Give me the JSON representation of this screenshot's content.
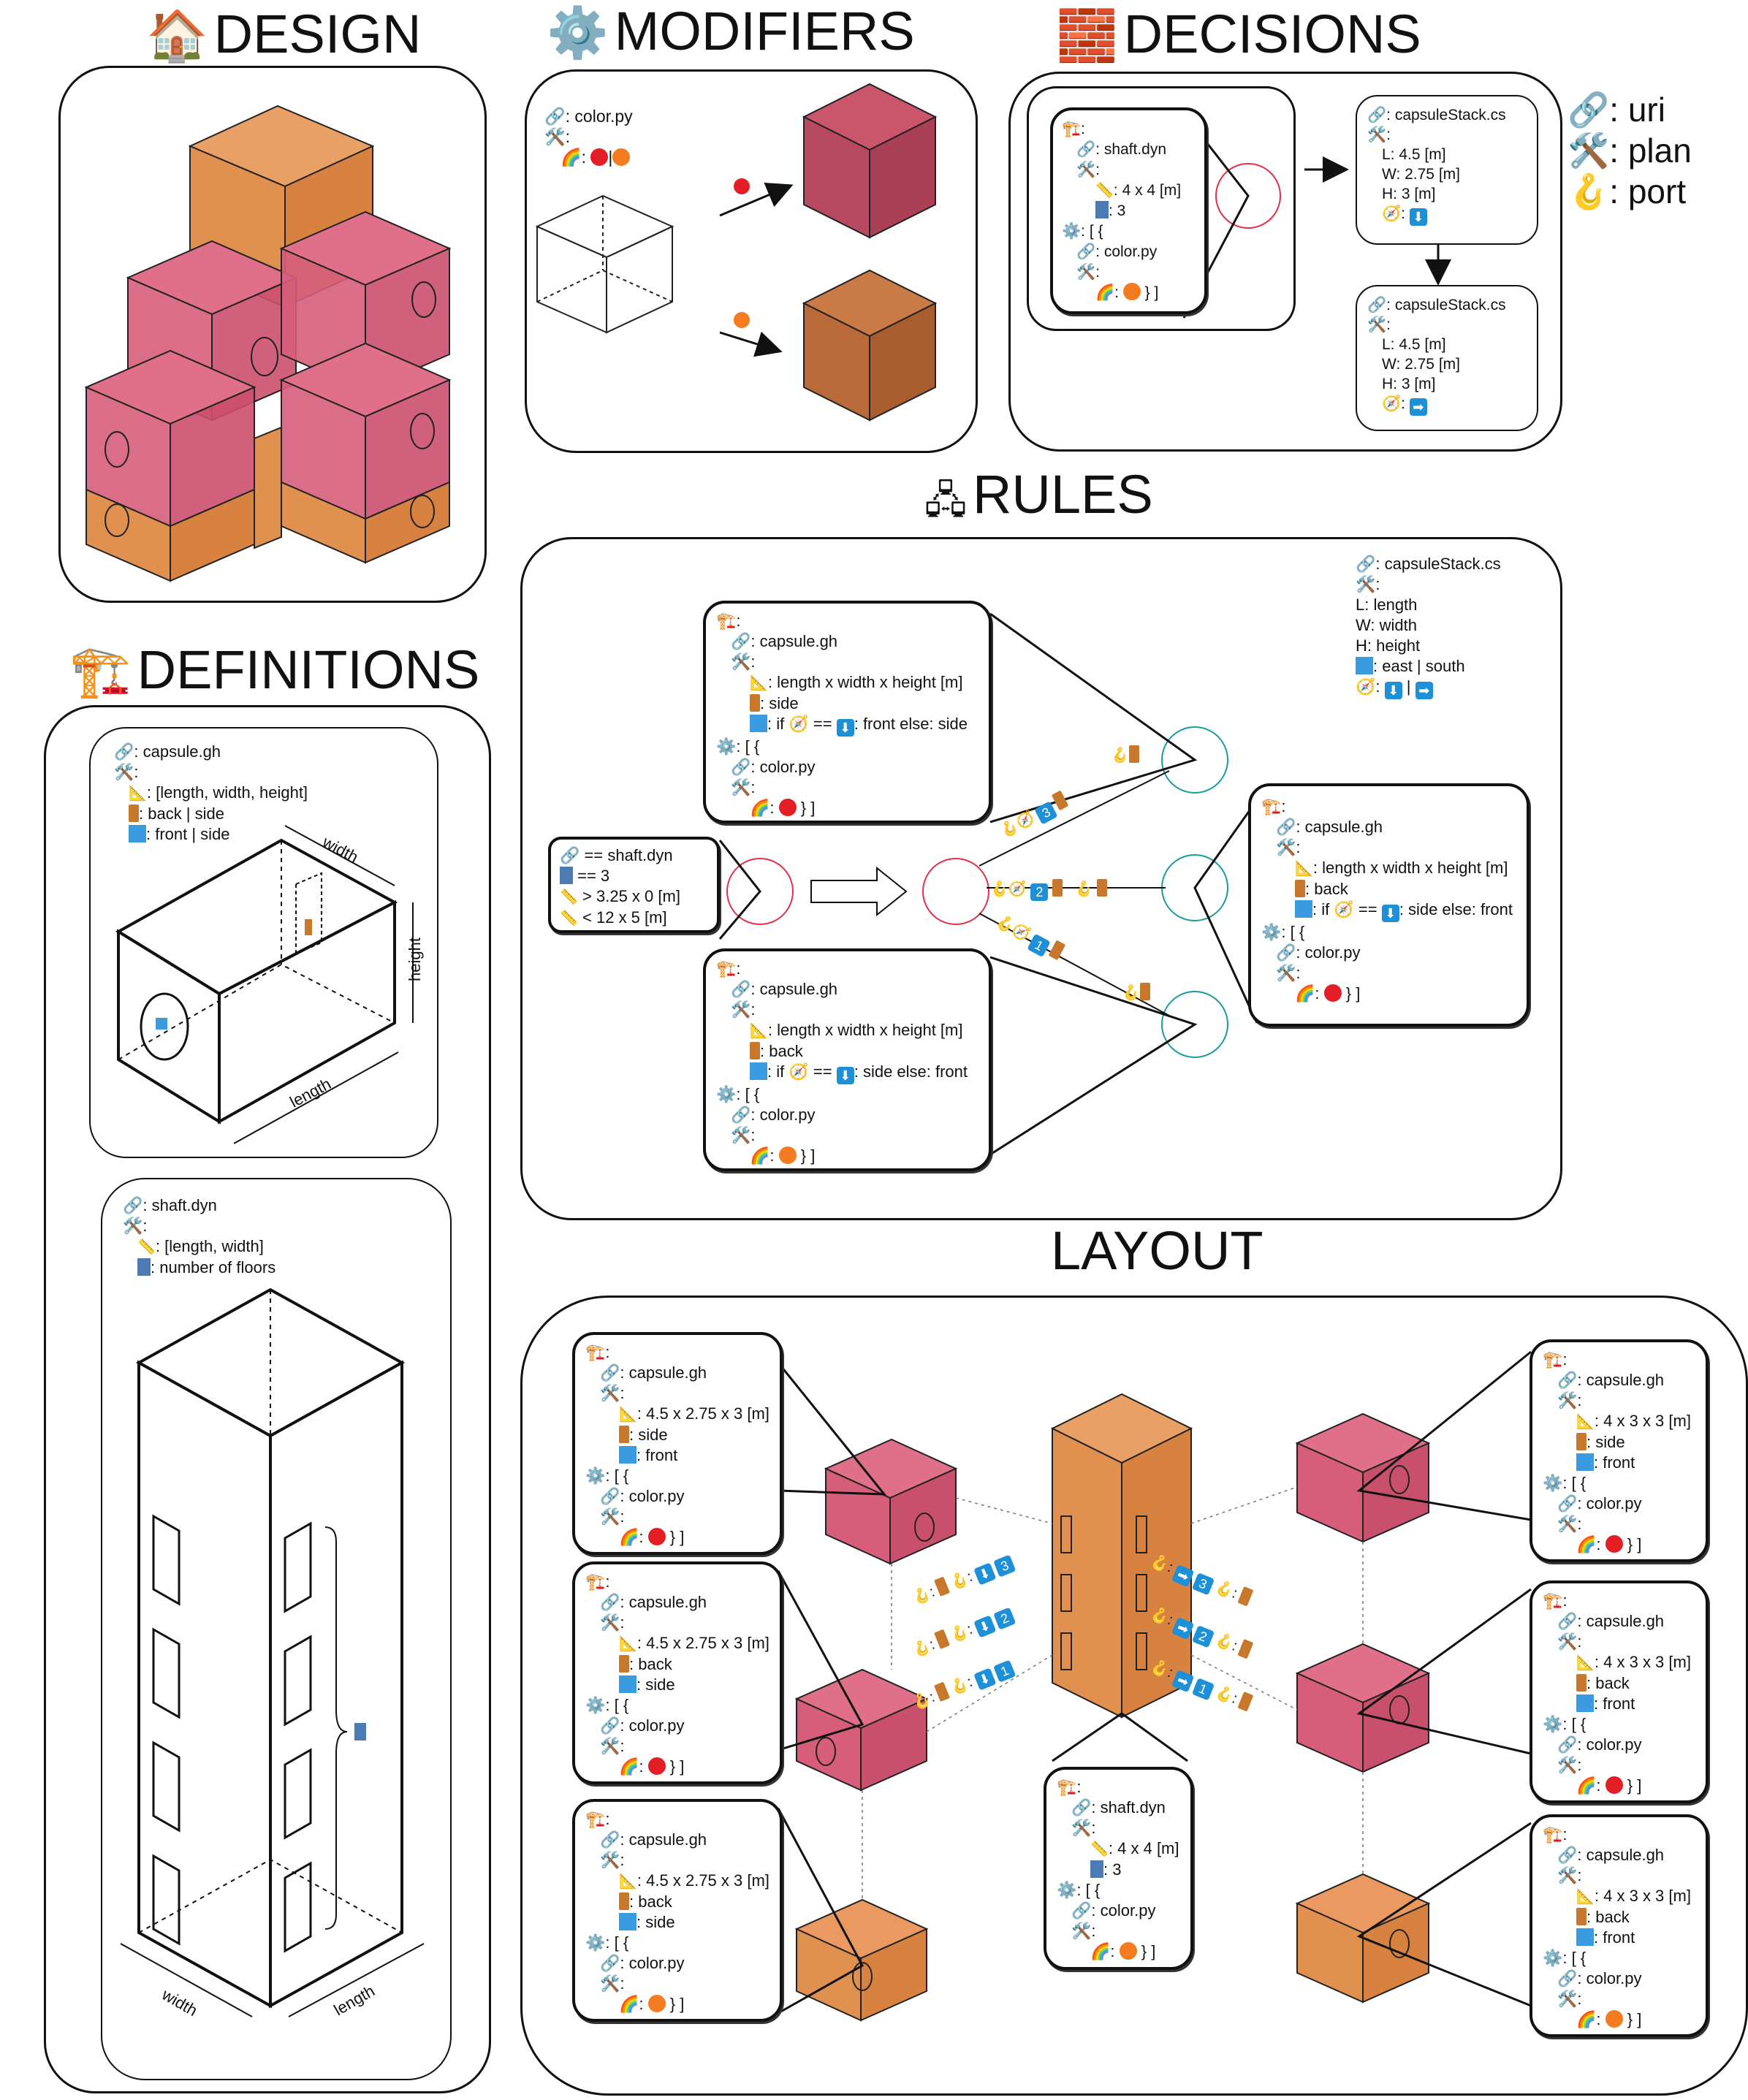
{
  "titles": {
    "design": "DESIGN",
    "modifiers": "MODIFIERS",
    "decisions": "DECISIONS",
    "rules": "RULES",
    "definitions": "DEFINITIONS",
    "layout": "LAYOUT"
  },
  "icons": {
    "design": "house-icon",
    "modifiers": "gear-icon",
    "decisions": "brick-icon",
    "rules": "network-icon",
    "definitions": "crane-icon",
    "uri": "link-icon",
    "plan": "tools-icon",
    "port": "hook-icon"
  },
  "colors": {
    "red": "#e31e24",
    "orange": "#f47b20",
    "pink_box": "#d9506d",
    "orange_box": "#e07a35",
    "blue": "#1e90d8",
    "teal": "#1a9a9a"
  },
  "legend": {
    "uri": ": uri",
    "plan": ": plan",
    "port": ": port"
  },
  "modifiers": {
    "uri": ": color.py",
    "plan": ":",
    "rainbow": ":",
    "sep": "|"
  },
  "decisions": {
    "shaft": {
      "crane": ":",
      "uri": ": shaft.dyn",
      "plan": ":",
      "size": ": 4 x 4 [m]",
      "floors": ": 3",
      "mods": ": [ {",
      "color_uri": ": color.py",
      "color_plan": ":",
      "color_close": "} ]"
    },
    "stack1": {
      "uri": ": capsuleStack.cs",
      "plan": ":",
      "l": "L: 4.5 [m]",
      "w": "W: 2.75 [m]",
      "h": "H: 3 [m]",
      "port": ":",
      "dir": "⬇"
    },
    "stack2": {
      "uri": ": capsuleStack.cs",
      "plan": ":",
      "l": "L: 4.5 [m]",
      "w": "W: 2.75 [m]",
      "h": "H: 3 [m]",
      "port": ":",
      "dir": "➡"
    }
  },
  "rules": {
    "stack": {
      "uri": ": capsuleStack.cs",
      "plan": ":",
      "l": "L: length",
      "w": "W: width",
      "h": "H: height",
      "win": ": east | south",
      "port": ":",
      "sep": "|"
    },
    "shaftQuery": {
      "uri": "== shaft.dyn",
      "floors": "== 3",
      "min": "> 3.25 x 0 [m]",
      "max": "< 12 x 5 [m]"
    },
    "capTop": {
      "crane": ":",
      "uri": ": capsule.gh",
      "plan": ":",
      "dims": ": length x width x height [m]",
      "door": ": side",
      "win_a": ": if",
      "win_b": "==",
      "win_c": ": front else: side",
      "mods": ": [ {",
      "color_uri": ": color.py",
      "color_plan": ":",
      "close": "} ]"
    },
    "capRight": {
      "crane": ":",
      "uri": ": capsule.gh",
      "plan": ":",
      "dims": ": length x width x height [m]",
      "door": ": back",
      "win_a": ": if",
      "win_b": "==",
      "win_c": ": side else: front",
      "mods": ": [ {",
      "color_uri": ": color.py",
      "color_plan": ":",
      "close": "} ]"
    },
    "capBottom": {
      "crane": ":",
      "uri": ": capsule.gh",
      "plan": ":",
      "dims": ": length x width x height [m]",
      "door": ": back",
      "win_a": ": if",
      "win_b": "==",
      "win_c": ": side else: front",
      "mods": ": [ {",
      "color_uri": ": color.py",
      "color_plan": ":",
      "close": "} ]"
    },
    "portNums": [
      "3",
      "2",
      "1"
    ]
  },
  "definitions": {
    "capsule": {
      "uri": ": capsule.gh",
      "plan": ":",
      "dims": ": [length, width, height]",
      "door": ": back | side",
      "win": ": front | side",
      "width": "width",
      "height": "height",
      "length": "length"
    },
    "shaft": {
      "uri": ": shaft.dyn",
      "plan": ":",
      "dims": ": [length, width]",
      "floors": ": number of floors",
      "width": "width",
      "length": "length"
    }
  },
  "layout": {
    "left": [
      {
        "crane": ":",
        "uri": ": capsule.gh",
        "plan": ":",
        "dims": ": 4.5 x 2.75 x 3 [m]",
        "door": ": side",
        "win": ": front",
        "mods": ": [ {",
        "color_uri": ": color.py",
        "color_plan": ":",
        "close": "} ]",
        "color": "red"
      },
      {
        "crane": ":",
        "uri": ": capsule.gh",
        "plan": ":",
        "dims": ": 4.5 x 2.75 x 3 [m]",
        "door": ": back",
        "win": ": side",
        "mods": ": [ {",
        "color_uri": ": color.py",
        "color_plan": ":",
        "close": "} ]",
        "color": "red"
      },
      {
        "crane": ":",
        "uri": ": capsule.gh",
        "plan": ":",
        "dims": ": 4.5 x 2.75 x 3 [m]",
        "door": ": back",
        "win": ": side",
        "mods": ": [ {",
        "color_uri": ": color.py",
        "color_plan": ":",
        "close": "} ]",
        "color": "orange"
      }
    ],
    "right": [
      {
        "crane": ":",
        "uri": ": capsule.gh",
        "plan": ":",
        "dims": ": 4 x 3 x 3 [m]",
        "door": ": side",
        "win": ": front",
        "mods": ": [ {",
        "color_uri": ": color.py",
        "color_plan": ":",
        "close": "} ]",
        "color": "red"
      },
      {
        "crane": ":",
        "uri": ": capsule.gh",
        "plan": ":",
        "dims": ": 4 x 3 x 3 [m]",
        "door": ": back",
        "win": ": front",
        "mods": ": [ {",
        "color_uri": ": color.py",
        "color_plan": ":",
        "close": "} ]",
        "color": "red"
      },
      {
        "crane": ":",
        "uri": ": capsule.gh",
        "plan": ":",
        "dims": ": 4 x 3 x 3 [m]",
        "door": ": back",
        "win": ": front",
        "mods": ": [ {",
        "color_uri": ": color.py",
        "color_plan": ":",
        "close": "} ]",
        "color": "orange"
      }
    ],
    "shaft": {
      "crane": ":",
      "uri": ": shaft.dyn",
      "plan": ":",
      "size": ": 4 x 4 [m]",
      "floors": ": 3",
      "mods": ": [ {",
      "color_uri": ": color.py",
      "color_plan": ":",
      "close": "} ]"
    },
    "portNums": [
      "3",
      "2",
      "1"
    ]
  }
}
